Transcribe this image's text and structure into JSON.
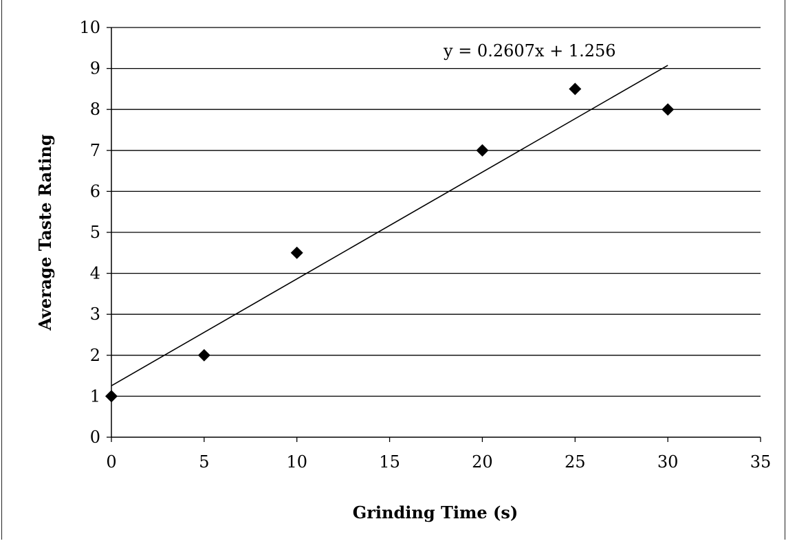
{
  "chart_data": {
    "type": "scatter",
    "title": "",
    "xlabel": "Grinding Time (s)",
    "ylabel": "Average Taste Rating",
    "xlim": [
      0,
      35
    ],
    "ylim": [
      0,
      10
    ],
    "x_ticks": [
      "0",
      "5",
      "10",
      "15",
      "20",
      "25",
      "30",
      "35"
    ],
    "y_ticks": [
      "0",
      "1",
      "2",
      "3",
      "4",
      "5",
      "6",
      "7",
      "8",
      "9",
      "10"
    ],
    "grid": "horizontal",
    "series": [
      {
        "x": [
          0,
          5,
          10,
          20,
          25,
          30
        ],
        "y": [
          1,
          2,
          4.5,
          7,
          8.5,
          8
        ],
        "marker": "diamond",
        "color": "#000000"
      }
    ],
    "trendline": {
      "type": "linear",
      "slope": 0.2607,
      "intercept": 1.256,
      "x_range": [
        0,
        30
      ],
      "label": "y = 0.2607x + 1.256"
    }
  }
}
